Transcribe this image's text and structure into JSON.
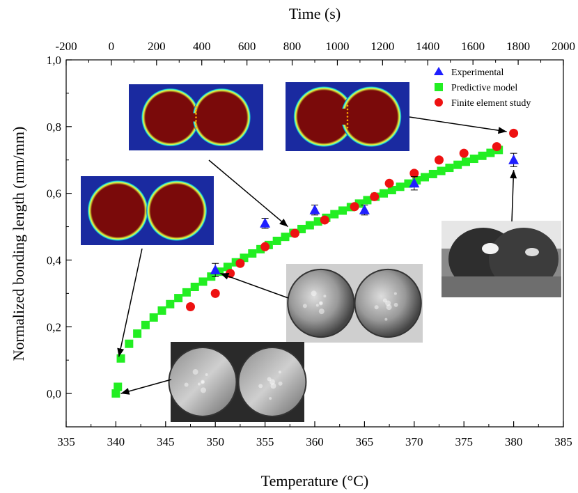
{
  "chart_data": {
    "type": "scatter",
    "xlabel": "Temperature (°C)",
    "ylabel": "Normalized bonding length (mm/mm)",
    "top_xlabel": "Time (s)",
    "xlim": [
      335,
      385
    ],
    "ylim": [
      -0.1,
      1.0
    ],
    "top_xlim": [
      -200,
      2000
    ],
    "x_ticks": [
      "335",
      "340",
      "345",
      "350",
      "355",
      "360",
      "365",
      "370",
      "375",
      "380",
      "385"
    ],
    "y_ticks": [
      "0,0",
      "0,2",
      "0,4",
      "0,6",
      "0,8",
      "1,0"
    ],
    "top_x_ticks": [
      "-200",
      "0",
      "200",
      "400",
      "600",
      "800",
      "1000",
      "1200",
      "1400",
      "1600",
      "1800",
      "2000"
    ],
    "grid": false,
    "legend_position": "top-right",
    "series": [
      {
        "name": "Experimental",
        "marker": "triangle",
        "color": "#1f1fff",
        "x": [
          350,
          355,
          360,
          365,
          370,
          380
        ],
        "y": [
          0.37,
          0.51,
          0.55,
          0.55,
          0.63,
          0.7
        ],
        "err": [
          0.02,
          0.015,
          0.015,
          0.015,
          0.02,
          0.02
        ]
      },
      {
        "name": "Predictive model",
        "marker": "square",
        "color": "#22ee22",
        "x_start": 340,
        "x_end": 378.5,
        "formula": "sqrt_growth",
        "extra_points": [
          [
            340,
            0.0
          ],
          [
            340.2,
            0.02
          ]
        ]
      },
      {
        "name": "Finite element study",
        "marker": "circle",
        "color": "#ee1111",
        "x": [
          347.5,
          350,
          351.5,
          352.5,
          355,
          358,
          361,
          364,
          366,
          367.5,
          370,
          372.5,
          375,
          378.3,
          380
        ],
        "y": [
          0.26,
          0.3,
          0.36,
          0.39,
          0.44,
          0.48,
          0.52,
          0.56,
          0.59,
          0.63,
          0.66,
          0.7,
          0.72,
          0.74,
          0.78
        ]
      }
    ]
  },
  "insets": [
    {
      "name": "simulation-inset-initial",
      "kind": "simulation",
      "contact": 0.03
    },
    {
      "name": "simulation-inset-middle",
      "kind": "simulation",
      "contact": 0.26
    },
    {
      "name": "simulation-inset-final",
      "kind": "simulation",
      "contact": 0.45
    },
    {
      "name": "photo-inset-340",
      "kind": "photo",
      "contact": 0.03
    },
    {
      "name": "photo-inset-350",
      "kind": "photo",
      "contact": 0.06
    },
    {
      "name": "photo-inset-380",
      "kind": "photo",
      "contact": 0.2
    }
  ]
}
